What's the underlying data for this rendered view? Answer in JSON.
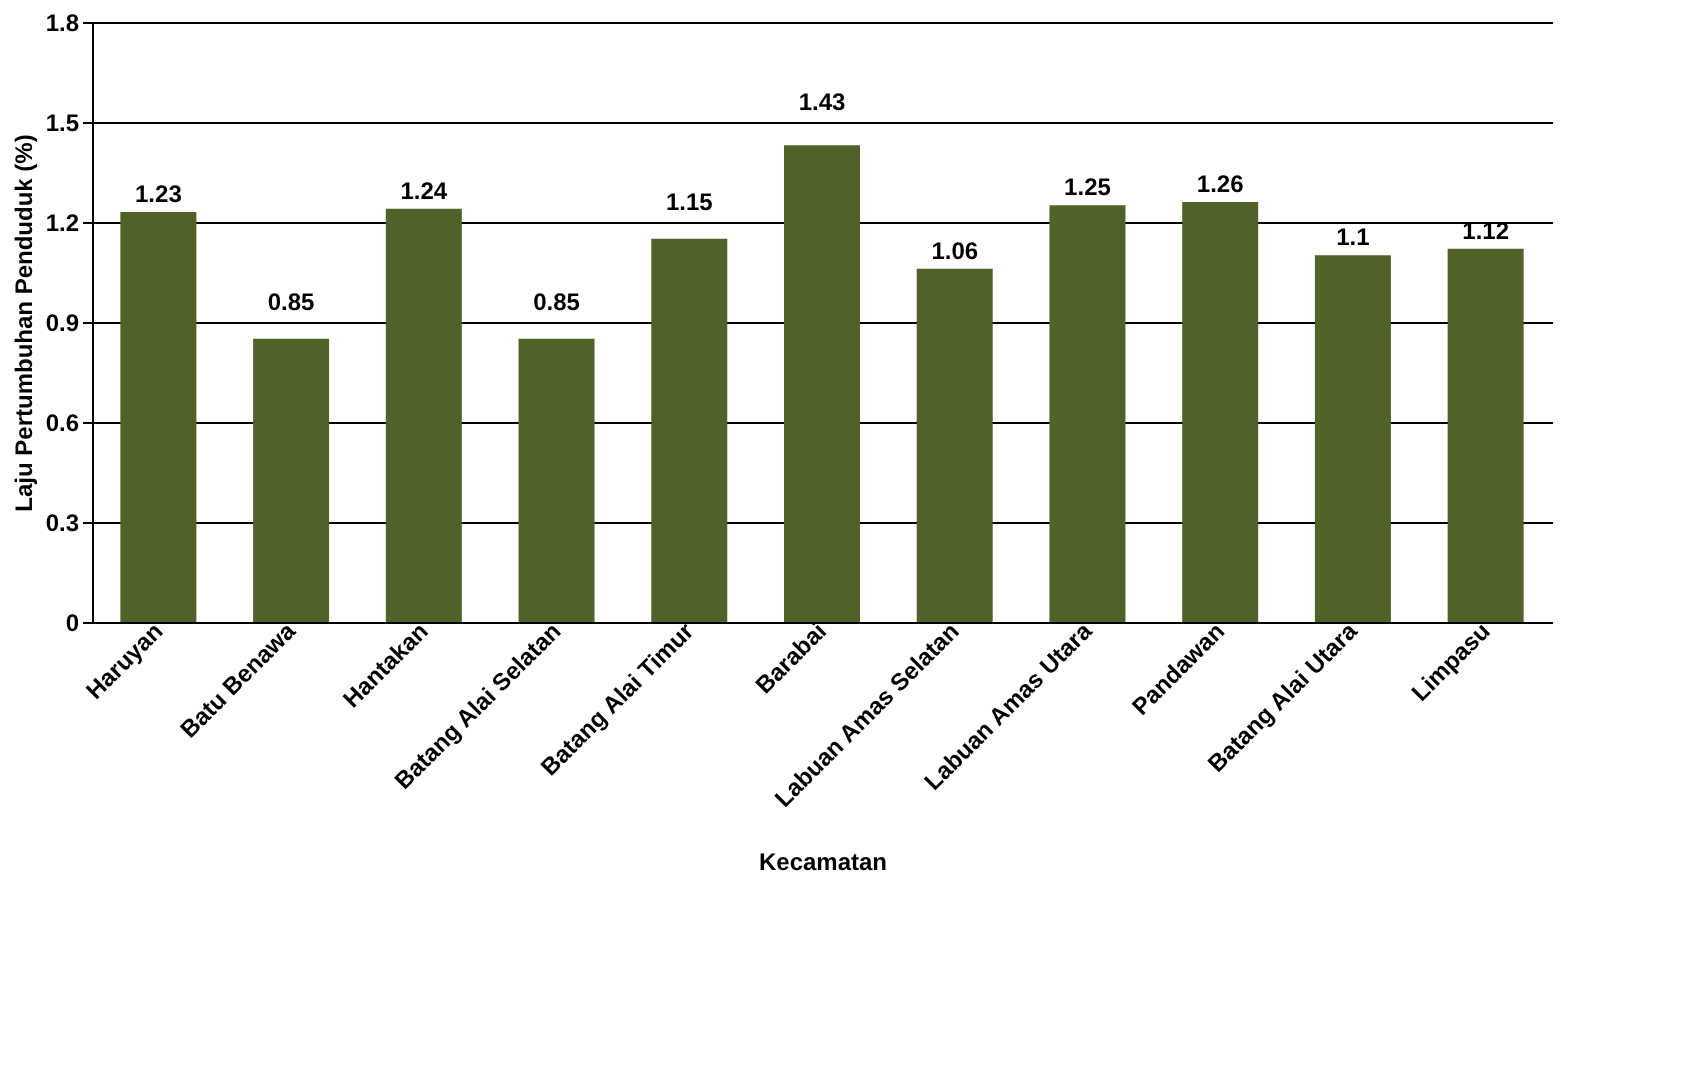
{
  "chart_data": {
    "type": "bar",
    "xlabel": "Kecamatan",
    "ylabel": "Laju Pertumbuhan Penduduk (%)",
    "categories": [
      "Haruyan",
      "Batu Benawa",
      "Hantakan",
      "Batang Alai Selatan",
      "Batang Alai Timur",
      "Barabai",
      "Labuan Amas Selatan",
      "Labuan Amas Utara",
      "Pandawan",
      "Batang Alai Utara",
      "Limpasu"
    ],
    "values": [
      1.23,
      0.85,
      1.24,
      0.85,
      1.15,
      1.43,
      1.06,
      1.25,
      1.26,
      1.1,
      1.12
    ],
    "color": "#4f6228",
    "ylim": [
      0,
      1.8
    ],
    "yticks": [
      0,
      0.3,
      0.6,
      0.9,
      1.2,
      1.5,
      1.8
    ],
    "grid": "y",
    "data_labels": true
  }
}
